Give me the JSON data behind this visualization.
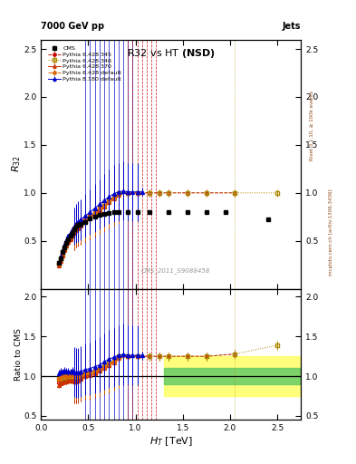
{
  "title": "R32 vs HT",
  "subtitle": "(NSD)",
  "top_left": "7000 GeV pp",
  "top_right": "Jets",
  "ylabel_main": "R_{32}",
  "ylabel_ratio": "Ratio to CMS",
  "xlabel": "H_{T} [TeV]",
  "right_label_top": "Rivet 3.1.10, ≥ 100k events",
  "right_label_bot": "mcplots.cern.ch [arXiv:1306.3436]",
  "watermark": "CMS_2011_S9088458",
  "xlim": [
    0.0,
    2.75
  ],
  "ylim_main": [
    0.0,
    2.6
  ],
  "ylim_ratio": [
    0.45,
    2.1
  ],
  "cms_x": [
    0.19,
    0.21,
    0.23,
    0.25,
    0.27,
    0.29,
    0.31,
    0.33,
    0.35,
    0.37,
    0.39,
    0.42,
    0.47,
    0.52,
    0.57,
    0.62,
    0.67,
    0.72,
    0.77,
    0.82,
    0.92,
    1.02,
    1.15,
    1.35,
    1.55,
    1.75,
    1.95,
    2.4
  ],
  "cms_y": [
    0.27,
    0.32,
    0.38,
    0.43,
    0.48,
    0.52,
    0.55,
    0.58,
    0.62,
    0.65,
    0.67,
    0.68,
    0.7,
    0.73,
    0.75,
    0.77,
    0.78,
    0.79,
    0.8,
    0.8,
    0.8,
    0.8,
    0.8,
    0.8,
    0.8,
    0.8,
    0.8,
    0.72
  ],
  "cms_yerr": [
    0.01,
    0.01,
    0.01,
    0.01,
    0.01,
    0.01,
    0.01,
    0.01,
    0.01,
    0.01,
    0.01,
    0.01,
    0.01,
    0.01,
    0.01,
    0.01,
    0.01,
    0.01,
    0.01,
    0.01,
    0.01,
    0.01,
    0.01,
    0.01,
    0.01,
    0.01,
    0.01,
    0.01
  ],
  "py6_345_x": [
    0.19,
    0.21,
    0.23,
    0.25,
    0.27,
    0.29,
    0.31,
    0.33,
    0.35,
    0.37,
    0.39,
    0.42,
    0.47,
    0.52,
    0.57,
    0.62,
    0.67,
    0.72,
    0.77,
    0.82,
    0.92,
    1.02,
    1.15,
    1.25,
    1.35,
    1.55,
    1.75,
    2.05
  ],
  "py6_345_y": [
    0.25,
    0.3,
    0.35,
    0.4,
    0.45,
    0.49,
    0.52,
    0.55,
    0.58,
    0.61,
    0.64,
    0.66,
    0.7,
    0.74,
    0.78,
    0.82,
    0.86,
    0.9,
    0.95,
    0.99,
    1.0,
    1.0,
    1.0,
    1.0,
    1.0,
    1.0,
    1.0,
    1.0
  ],
  "py6_346_x": [
    0.19,
    0.21,
    0.23,
    0.25,
    0.27,
    0.29,
    0.31,
    0.33,
    0.35,
    0.37,
    0.39,
    0.42,
    0.47,
    0.52,
    0.57,
    0.62,
    0.67,
    0.72,
    0.77,
    0.82,
    0.92,
    1.02,
    1.15,
    1.25,
    1.35,
    1.55,
    1.75,
    2.05,
    2.5
  ],
  "py6_346_y": [
    0.26,
    0.31,
    0.36,
    0.42,
    0.47,
    0.51,
    0.54,
    0.57,
    0.6,
    0.63,
    0.65,
    0.68,
    0.72,
    0.76,
    0.8,
    0.84,
    0.88,
    0.92,
    0.96,
    1.0,
    1.0,
    1.0,
    1.0,
    1.0,
    1.0,
    1.0,
    1.0,
    1.0,
    1.0
  ],
  "py6_370_x": [
    0.19,
    0.21,
    0.23,
    0.25,
    0.27,
    0.29,
    0.31,
    0.33,
    0.35,
    0.37,
    0.39,
    0.42,
    0.47,
    0.52,
    0.57,
    0.62,
    0.67,
    0.72,
    0.77,
    0.82,
    0.92,
    1.02
  ],
  "py6_370_y": [
    0.24,
    0.29,
    0.35,
    0.4,
    0.45,
    0.49,
    0.52,
    0.55,
    0.58,
    0.61,
    0.63,
    0.66,
    0.7,
    0.74,
    0.78,
    0.82,
    0.86,
    0.9,
    0.94,
    0.98,
    1.0,
    1.0
  ],
  "py6_def_x": [
    0.19,
    0.21,
    0.23,
    0.25,
    0.27,
    0.29,
    0.31,
    0.33,
    0.35,
    0.37,
    0.39,
    0.42,
    0.47,
    0.52,
    0.57,
    0.62,
    0.67,
    0.72,
    0.77,
    0.82,
    0.92,
    1.02
  ],
  "py6_def_y": [
    0.26,
    0.32,
    0.38,
    0.43,
    0.48,
    0.52,
    0.56,
    0.59,
    0.62,
    0.65,
    0.67,
    0.7,
    0.73,
    0.77,
    0.8,
    0.84,
    0.87,
    0.91,
    0.95,
    0.98,
    1.0,
    1.0
  ],
  "py8_x": [
    0.19,
    0.21,
    0.23,
    0.25,
    0.27,
    0.29,
    0.31,
    0.33,
    0.35,
    0.37,
    0.39,
    0.42,
    0.47,
    0.52,
    0.57,
    0.62,
    0.67,
    0.72,
    0.77,
    0.82,
    0.87,
    0.92,
    0.97,
    1.02,
    1.07
  ],
  "py8_y": [
    0.28,
    0.34,
    0.4,
    0.46,
    0.51,
    0.55,
    0.58,
    0.62,
    0.65,
    0.68,
    0.7,
    0.72,
    0.76,
    0.8,
    0.84,
    0.88,
    0.92,
    0.96,
    0.99,
    1.01,
    1.02,
    1.01,
    1.01,
    1.01,
    1.01
  ],
  "color_cms": "#000000",
  "color_py6_345": "#cc0000",
  "color_py6_346": "#aa8800",
  "color_py6_370": "#cc3300",
  "color_py6_def": "#dd6600",
  "color_py8": "#0000cc",
  "vlines_blue": [
    0.47,
    0.52,
    0.57,
    0.62,
    0.67,
    0.72,
    0.77,
    0.82,
    0.87,
    0.92,
    0.97
  ],
  "vlines_red": [
    0.92,
    0.97,
    1.02,
    1.07,
    1.12,
    1.17,
    1.22
  ],
  "vlines_gold": [
    2.05
  ],
  "band_x_start": 1.3,
  "band_green": [
    0.9,
    1.1
  ],
  "band_yellow": [
    0.75,
    1.25
  ]
}
